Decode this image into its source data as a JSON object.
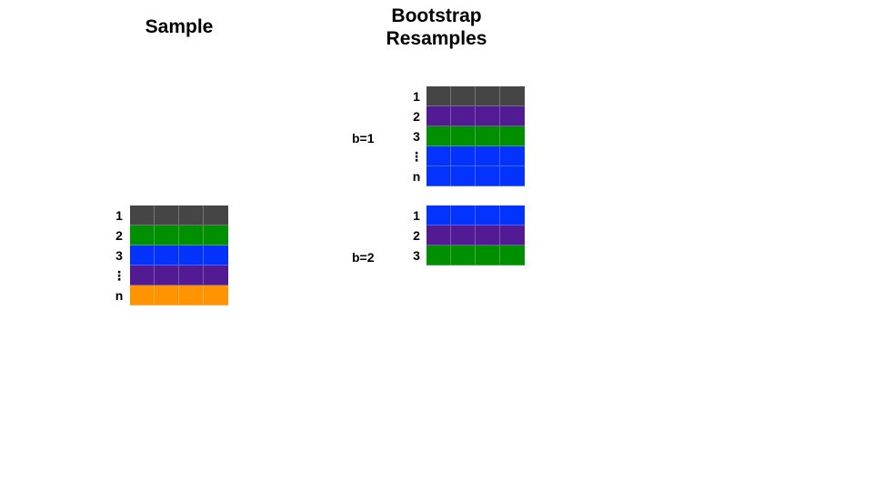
{
  "titles": {
    "sample": "Sample",
    "bootstrap_line1": "Bootstrap",
    "bootstrap_line2": "Resamples"
  },
  "colors": {
    "gray": "#454545",
    "purple": "#531b93",
    "green": "#008f00",
    "blue": "#0433ff",
    "orange": "#ff9300"
  },
  "sample": {
    "row_labels": [
      "1",
      "2",
      "3",
      "⋮",
      "n"
    ],
    "row_colors": [
      "gray",
      "green",
      "blue",
      "purple",
      "orange"
    ]
  },
  "resamples": [
    {
      "label": "b=1",
      "row_labels": [
        "1",
        "2",
        "3",
        "⋮",
        "n"
      ],
      "row_colors": [
        "gray",
        "purple",
        "green",
        "blue",
        "blue"
      ]
    },
    {
      "label": "b=2",
      "row_labels": [
        "1",
        "2",
        "3"
      ],
      "row_colors": [
        "blue",
        "purple",
        "green"
      ]
    }
  ]
}
